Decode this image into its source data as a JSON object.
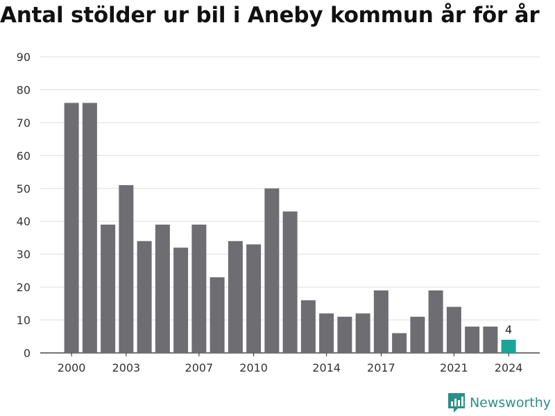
{
  "title": "Antal stölder ur bil i Aneby kommun år för år",
  "brand": {
    "name": "Newsworthy"
  },
  "colors": {
    "bar": "#6e6d72",
    "highlight": "#1aa59a",
    "grid": "#dddddd",
    "brand": "#2a8f87"
  },
  "chart_data": {
    "type": "bar",
    "title": "Antal stölder ur bil i Aneby kommun år för år",
    "xlabel": "",
    "ylabel": "",
    "categories": [
      "2000",
      "2001",
      "2002",
      "2003",
      "2004",
      "2005",
      "2006",
      "2007",
      "2008",
      "2009",
      "2010",
      "2011",
      "2012",
      "2013",
      "2014",
      "2015",
      "2016",
      "2017",
      "2018",
      "2019",
      "2020",
      "2021",
      "2022",
      "2023",
      "2024"
    ],
    "values": [
      76,
      76,
      39,
      51,
      34,
      39,
      32,
      39,
      23,
      34,
      33,
      50,
      43,
      16,
      12,
      11,
      12,
      19,
      6,
      11,
      19,
      14,
      8,
      8,
      4
    ],
    "x_tick_labels": [
      "2000",
      "2003",
      "2007",
      "2010",
      "2014",
      "2017",
      "2021",
      "2024"
    ],
    "y_ticks": [
      0,
      10,
      20,
      30,
      40,
      50,
      60,
      70,
      80,
      90
    ],
    "ylim": [
      0,
      90
    ],
    "highlight_category": "2024",
    "data_labels": [
      {
        "category": "2024",
        "text": "4"
      }
    ],
    "grid": true,
    "legend": "none"
  }
}
